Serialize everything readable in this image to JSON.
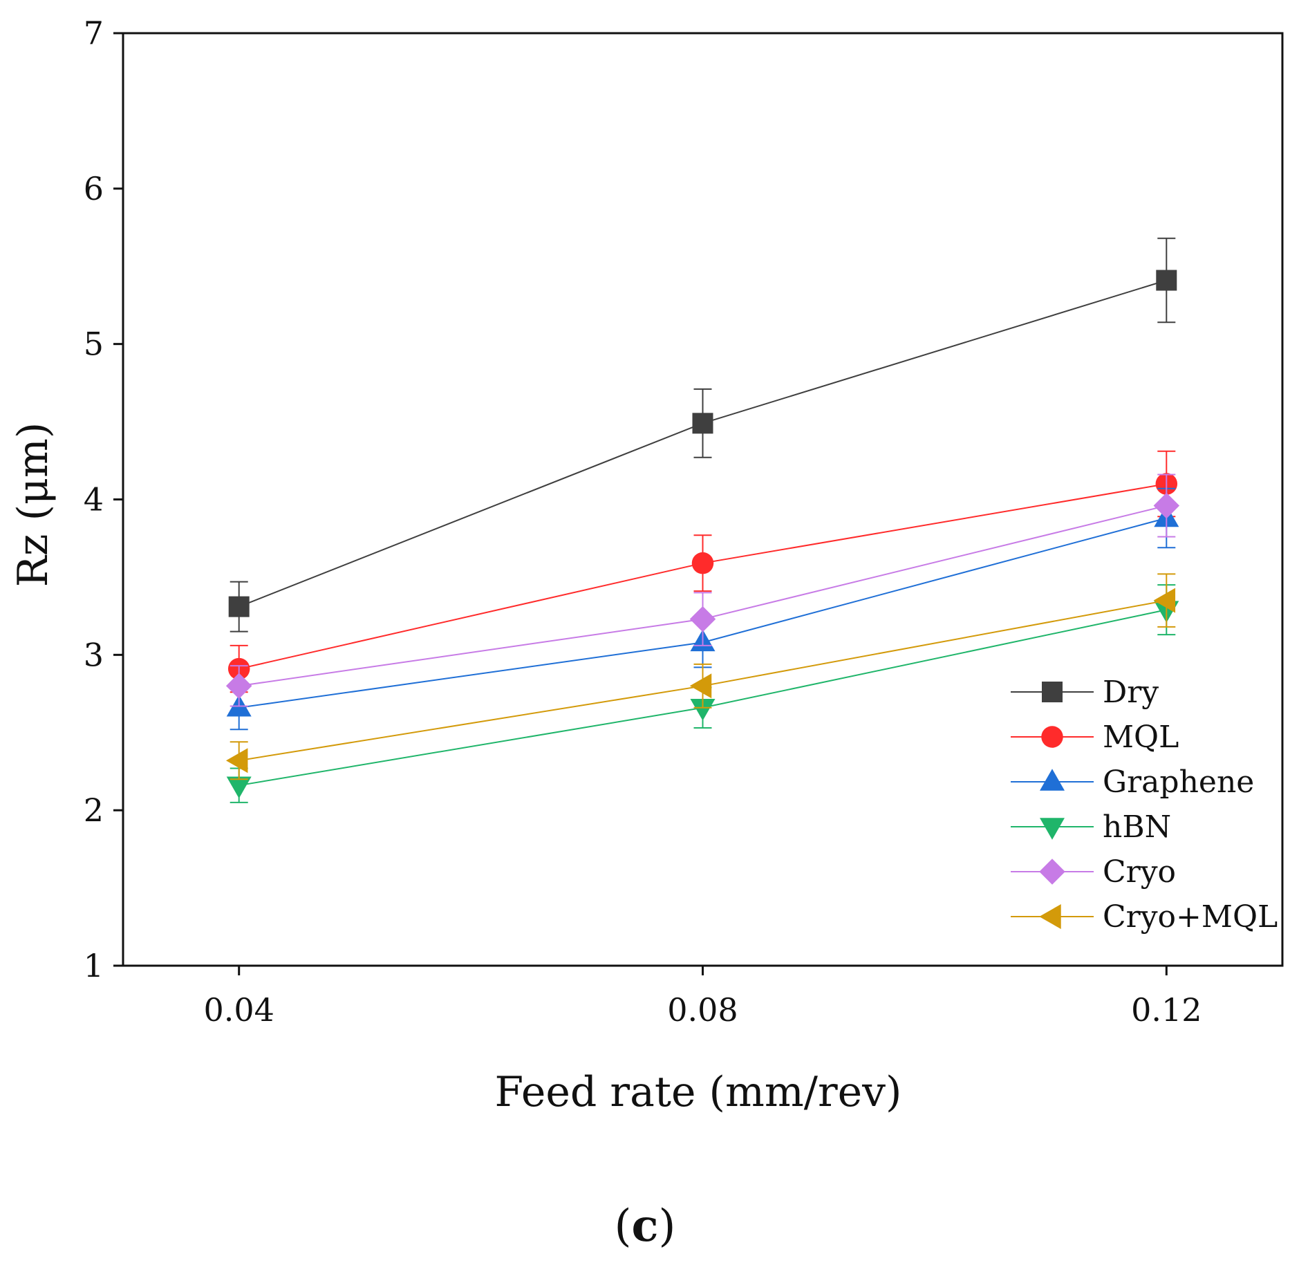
{
  "chart_data": {
    "type": "line",
    "title": "",
    "xlabel": "Feed rate (mm/rev)",
    "ylabel": "Rz (μm)",
    "panel_label": {
      "open": "(",
      "letter": "c",
      "close": ")"
    },
    "x": [
      0.04,
      0.08,
      0.12
    ],
    "x_tick_labels": [
      "0.04",
      "0.08",
      "0.12"
    ],
    "xlim": [
      0.03,
      0.13
    ],
    "ylim": [
      1,
      7
    ],
    "y_ticks": [
      1,
      2,
      3,
      4,
      5,
      6,
      7
    ],
    "y_tick_labels": [
      "1",
      "2",
      "3",
      "4",
      "5",
      "6",
      "7"
    ],
    "grid": false,
    "legend_position": "bottom-right",
    "series": [
      {
        "name": "Dry",
        "marker": "square",
        "color": "#3f3f3f",
        "values": [
          3.31,
          4.49,
          5.41
        ],
        "errors": [
          0.16,
          0.22,
          0.27
        ]
      },
      {
        "name": "MQL",
        "marker": "circle",
        "color": "#ff2b2b",
        "values": [
          2.91,
          3.59,
          4.1
        ],
        "errors": [
          0.15,
          0.18,
          0.21
        ]
      },
      {
        "name": "Graphene",
        "marker": "triangle-up",
        "color": "#1f6fd6",
        "values": [
          2.66,
          3.08,
          3.88
        ],
        "errors": [
          0.14,
          0.16,
          0.19
        ]
      },
      {
        "name": "hBN",
        "marker": "triangle-down",
        "color": "#1fb56a",
        "values": [
          2.16,
          2.66,
          3.29
        ],
        "errors": [
          0.11,
          0.13,
          0.16
        ]
      },
      {
        "name": "Cryo",
        "marker": "diamond",
        "color": "#c77be6",
        "values": [
          2.8,
          3.23,
          3.96
        ],
        "errors": [
          0.13,
          0.17,
          0.2
        ]
      },
      {
        "name": "Cryo+MQL",
        "marker": "triangle-left",
        "color": "#d39a0a",
        "values": [
          2.32,
          2.8,
          3.35
        ],
        "errors": [
          0.12,
          0.14,
          0.17
        ]
      }
    ]
  }
}
